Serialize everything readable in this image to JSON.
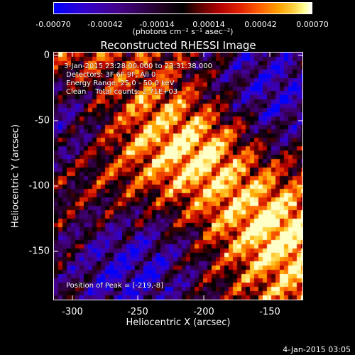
{
  "colorbar": {
    "ticks": [
      "-0.00070",
      "-0.00042",
      "-0.00014",
      "0.00014",
      "0.00042",
      "0.00070"
    ],
    "units": "(photons cm⁻² s⁻¹ asec⁻²)"
  },
  "plot": {
    "title": "Reconstructed RHESSI Image",
    "xlabel": "Heliocentric X (arcsec)",
    "ylabel": "Heliocentric Y (arcsec)",
    "xticks": [
      "-300",
      "-250",
      "-200",
      "-150"
    ],
    "yticks": [
      "0",
      "-50",
      "-100",
      "-150"
    ],
    "xrange": [
      -312,
      -122
    ],
    "yrange": [
      -190,
      0
    ]
  },
  "annotations": {
    "line1": "3-Jan-2015 23:28:00.000 to 23:31:38.000",
    "line2": "Detectors: 3F 6F 9F, All 0",
    "line3": "Energy Range: 25.0 - 50.0 keV",
    "line4": "Clean    Total counts: 2.71E+03",
    "peak": "Position of Peak = [-219,-8]"
  },
  "footer": {
    "datestamp": "4-Jan-2015 03:05"
  }
}
